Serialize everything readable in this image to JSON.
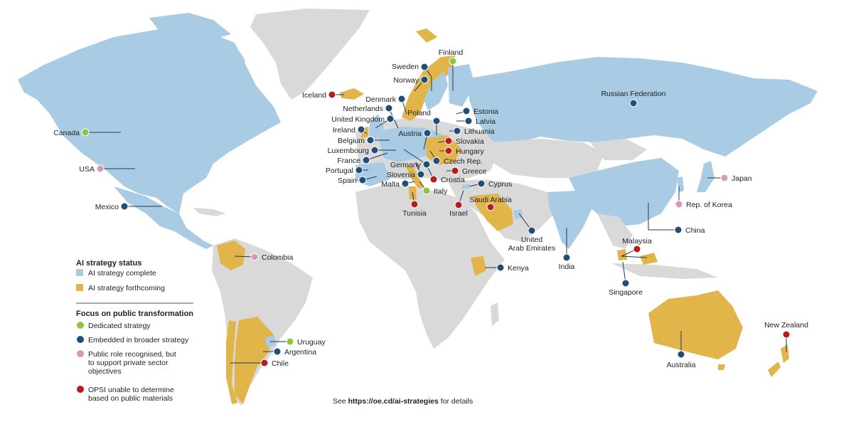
{
  "colors": {
    "complete": "#a9cbe3",
    "forthcoming": "#e2b54a",
    "other_land": "#d9d9d9",
    "dedicated": "#8cc63f",
    "embedded": "#1f4e79",
    "public_role": "#d69ab6",
    "undetermined": "#b71c1c"
  },
  "legend": {
    "status_title": "AI strategy status",
    "status_items": [
      {
        "label": "AI strategy complete",
        "status": "complete"
      },
      {
        "label": "AI strategy forthcoming",
        "status": "forthcoming"
      }
    ],
    "focus_title": "Focus on public transformation",
    "focus_items": [
      {
        "lines": [
          "Dedicated strategy"
        ],
        "focus": "dedicated"
      },
      {
        "lines": [
          "Embedded in broader strategy"
        ],
        "focus": "embedded"
      },
      {
        "lines": [
          "Public role recognised, but",
          "to support private sector",
          "objectives"
        ],
        "focus": "public_role"
      },
      {
        "lines": [
          "OPSI unable to determine",
          "based on public materials"
        ],
        "focus": "undetermined"
      }
    ]
  },
  "footer": {
    "prefix": "See ",
    "link": "https://oe.cd/ai-strategies",
    "suffix": " for details"
  },
  "countries": [
    {
      "name": "Finland",
      "focus": "dedicated",
      "status": "complete"
    },
    {
      "name": "Sweden",
      "focus": "embedded",
      "status": "complete"
    },
    {
      "name": "Norway",
      "focus": "embedded",
      "status": "forthcoming"
    },
    {
      "name": "Iceland",
      "focus": "undetermined",
      "status": "forthcoming"
    },
    {
      "name": "Denmark",
      "focus": "embedded",
      "status": "complete"
    },
    {
      "name": "Netherlands",
      "focus": "embedded",
      "status": "complete"
    },
    {
      "name": "United Kingdom",
      "focus": "embedded",
      "status": "complete"
    },
    {
      "name": "Ireland",
      "focus": "embedded",
      "status": "forthcoming"
    },
    {
      "name": "Belgium",
      "focus": "embedded",
      "status": "forthcoming"
    },
    {
      "name": "Luxembourg",
      "focus": "embedded",
      "status": "complete"
    },
    {
      "name": "France",
      "focus": "embedded",
      "status": "complete"
    },
    {
      "name": "Portugal",
      "focus": "embedded",
      "status": "complete"
    },
    {
      "name": "Spain",
      "focus": "embedded",
      "status": "complete"
    },
    {
      "name": "Germany",
      "focus": "embedded",
      "status": "complete"
    },
    {
      "name": "Slovenia",
      "focus": "embedded",
      "status": "forthcoming"
    },
    {
      "name": "Malta",
      "focus": "embedded",
      "status": "complete"
    },
    {
      "name": "Austria",
      "focus": "embedded",
      "status": "forthcoming"
    },
    {
      "name": "Poland",
      "focus": "embedded",
      "status": "forthcoming"
    },
    {
      "name": "Estonia",
      "focus": "embedded",
      "status": "complete"
    },
    {
      "name": "Latvia",
      "focus": "embedded",
      "status": "forthcoming"
    },
    {
      "name": "Lithuania",
      "focus": "embedded",
      "status": "complete"
    },
    {
      "name": "Slovakia",
      "focus": "undetermined",
      "status": "forthcoming"
    },
    {
      "name": "Hungary",
      "focus": "undetermined",
      "status": "forthcoming"
    },
    {
      "name": "Czech Rep.",
      "focus": "embedded",
      "status": "complete"
    },
    {
      "name": "Greece",
      "focus": "undetermined",
      "status": "forthcoming"
    },
    {
      "name": "Croatia",
      "focus": "undetermined",
      "status": "forthcoming"
    },
    {
      "name": "Cyprus",
      "focus": "embedded",
      "status": "complete"
    },
    {
      "name": "Italy",
      "focus": "dedicated",
      "status": "forthcoming"
    },
    {
      "name": "Tunisia",
      "focus": "undetermined",
      "status": "forthcoming"
    },
    {
      "name": "Israel",
      "focus": "undetermined",
      "status": "forthcoming"
    },
    {
      "name": "Saudi Arabia",
      "focus": "undetermined",
      "status": "forthcoming"
    },
    {
      "name": "United Arab Emirates",
      "lines": [
        "United",
        "Arab Emirates"
      ],
      "focus": "embedded",
      "status": "complete"
    },
    {
      "name": "Russian Federation",
      "focus": "embedded",
      "status": "complete"
    },
    {
      "name": "Canada",
      "focus": "dedicated",
      "status": "complete"
    },
    {
      "name": "USA",
      "focus": "public_role",
      "status": "complete"
    },
    {
      "name": "Mexico",
      "focus": "embedded",
      "status": "complete"
    },
    {
      "name": "Colombia",
      "focus": "public_role",
      "status": "forthcoming"
    },
    {
      "name": "Kenya",
      "focus": "embedded",
      "status": "forthcoming"
    },
    {
      "name": "India",
      "focus": "embedded",
      "status": "complete"
    },
    {
      "name": "China",
      "focus": "embedded",
      "status": "complete"
    },
    {
      "name": "Japan",
      "focus": "public_role",
      "status": "complete"
    },
    {
      "name": "Rep. of Korea",
      "focus": "public_role",
      "status": "complete"
    },
    {
      "name": "Malaysia",
      "focus": "undetermined",
      "status": "forthcoming"
    },
    {
      "name": "Singapore",
      "focus": "embedded",
      "status": "complete"
    },
    {
      "name": "Uruguay",
      "focus": "dedicated",
      "status": "complete"
    },
    {
      "name": "Argentina",
      "focus": "embedded",
      "status": "forthcoming"
    },
    {
      "name": "Chile",
      "focus": "undetermined",
      "status": "forthcoming"
    },
    {
      "name": "Australia",
      "focus": "embedded",
      "status": "forthcoming"
    },
    {
      "name": "New Zealand",
      "focus": "undetermined",
      "status": "forthcoming"
    }
  ]
}
